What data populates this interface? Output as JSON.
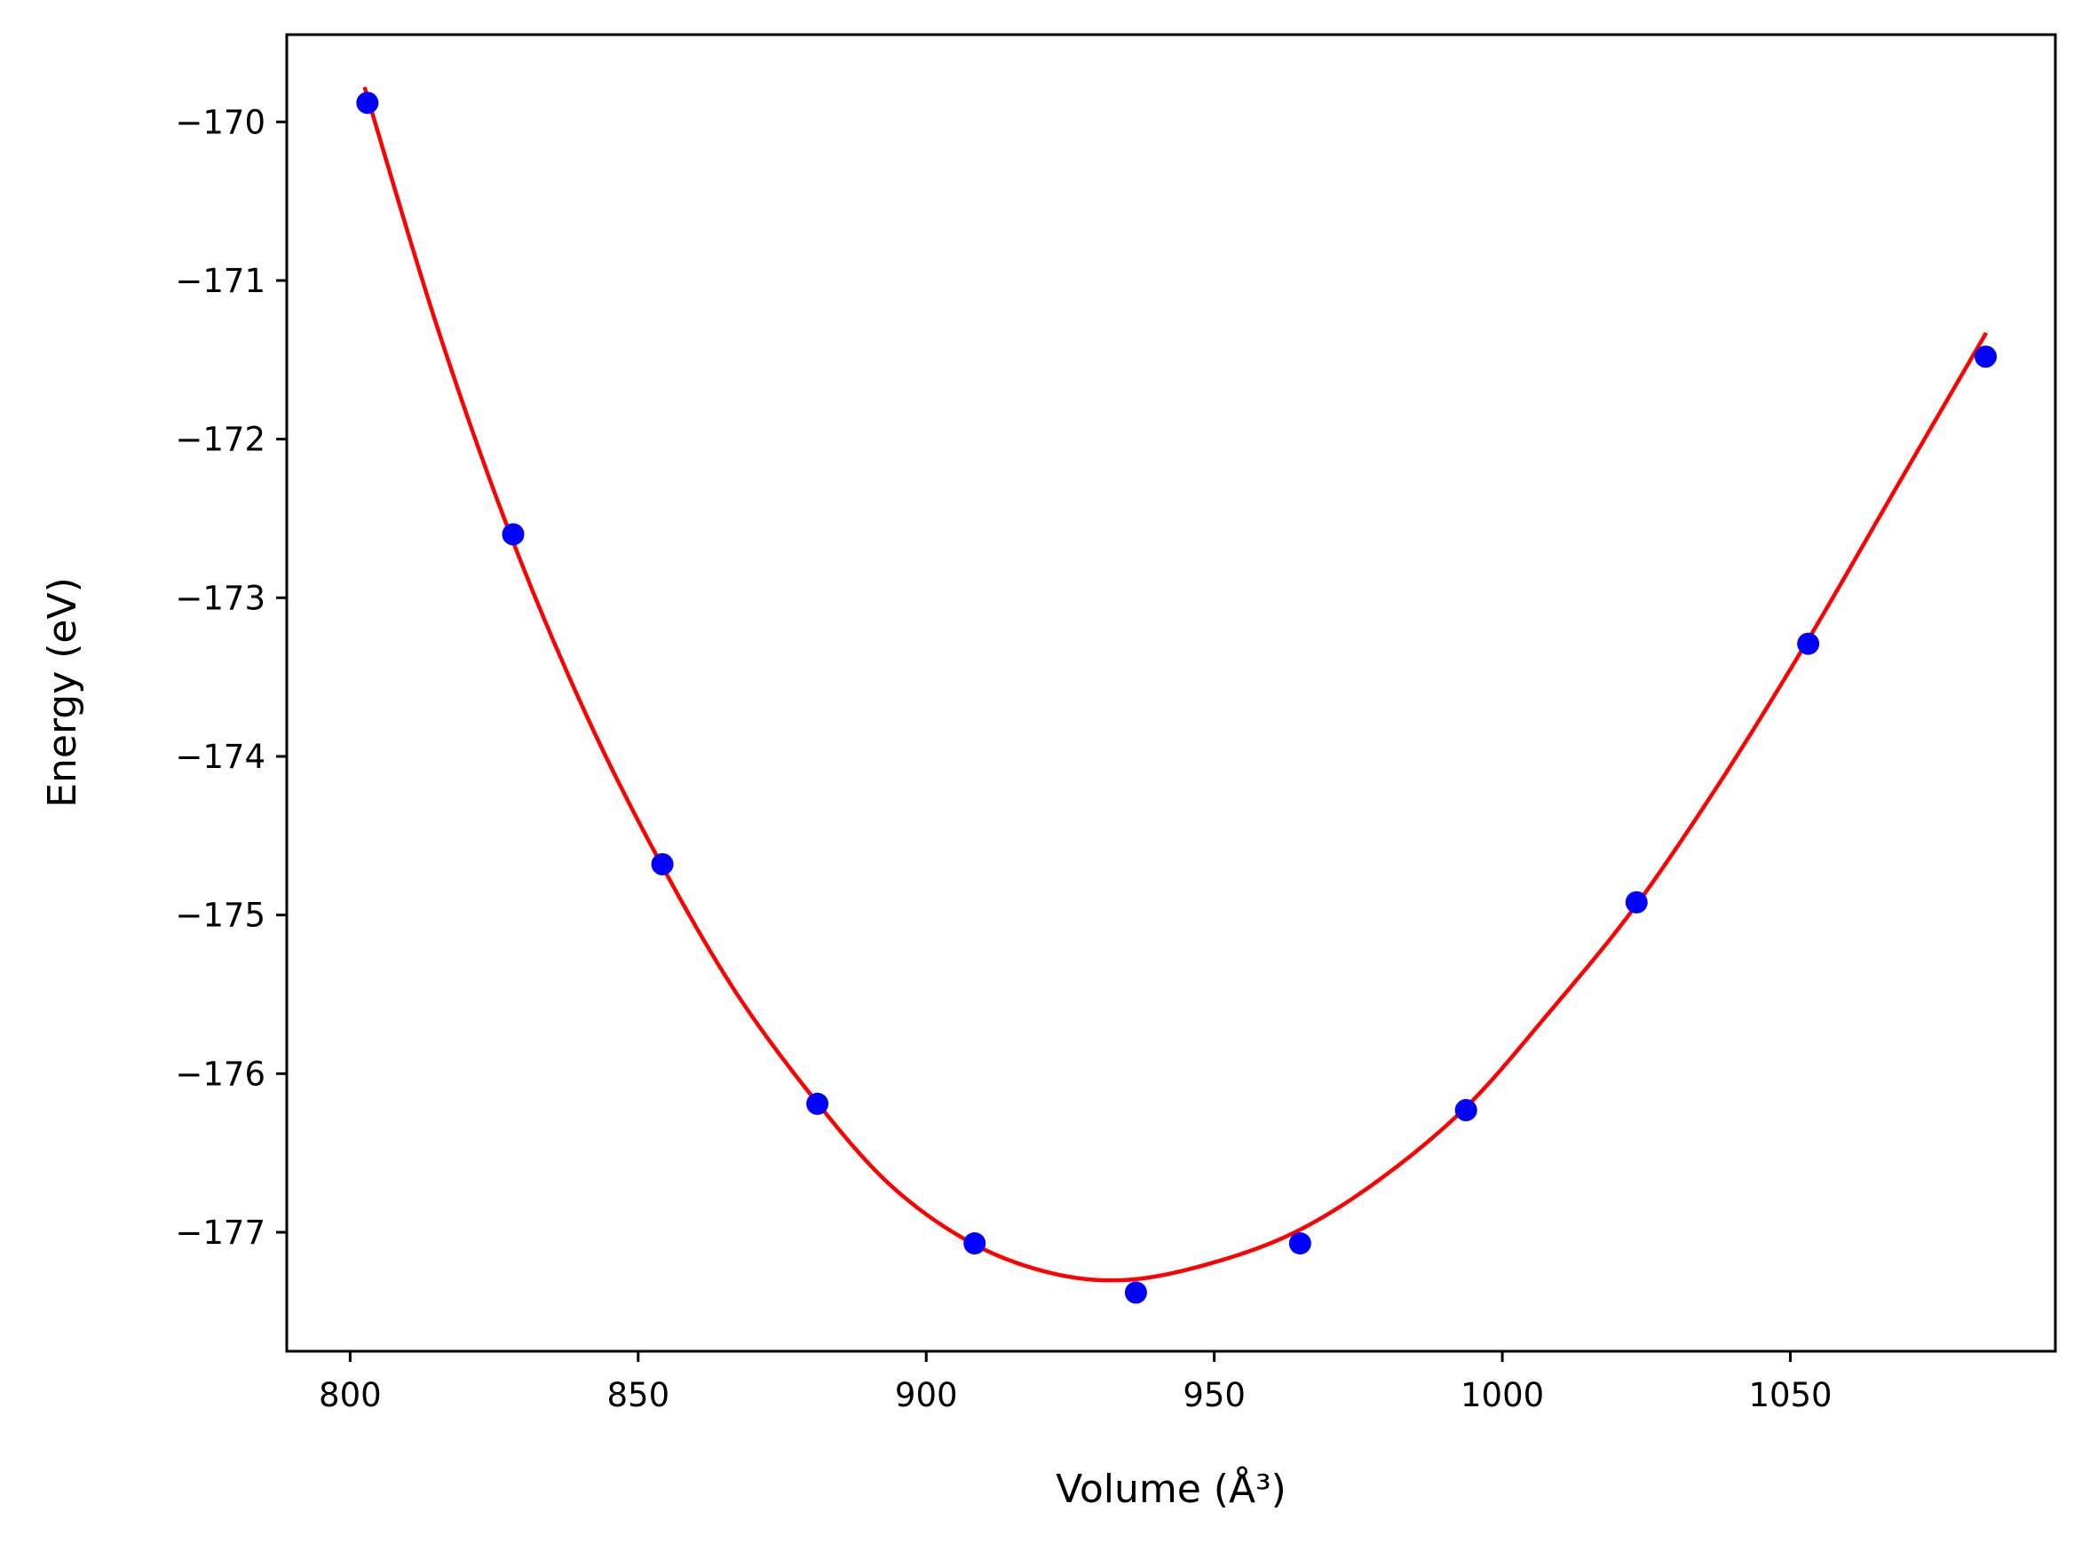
{
  "chart_data": {
    "type": "scatter",
    "xlabel": "Volume (Å³)",
    "ylabel": "Energy (eV)",
    "xlim": [
      789,
      1096
    ],
    "ylim": [
      -177.75,
      -169.45
    ],
    "xticks": [
      800,
      850,
      900,
      950,
      1000,
      1050
    ],
    "yticks": [
      -170,
      -171,
      -172,
      -173,
      -174,
      -175,
      -176,
      -177
    ],
    "xtick_labels": [
      "800",
      "850",
      "900",
      "950",
      "1000",
      "1050"
    ],
    "ytick_labels": [
      "−170",
      "−171",
      "−172",
      "−173",
      "−174",
      "−175",
      "−176",
      "−177"
    ],
    "grid": false,
    "legend": "none",
    "series": [
      {
        "kind": "points",
        "color": "#0000ff",
        "x": [
          803,
          828.3,
          854.2,
          881.1,
          908.4,
          936.4,
          964.9,
          993.7,
          1023.3,
          1053.1,
          1083.9
        ],
        "y": [
          -169.88,
          -172.6,
          -174.68,
          -176.19,
          -177.07,
          -177.38,
          -177.07,
          -176.23,
          -174.92,
          -173.29,
          -171.48
        ]
      },
      {
        "kind": "fit-curve",
        "color": "#ff0000",
        "x": [
          802.5,
          815,
          828,
          841,
          854,
          867,
          881,
          894,
          908,
          922,
          935,
          949,
          964,
          979,
          994,
          1008,
          1023,
          1038,
          1053,
          1068,
          1084
        ],
        "y": [
          -169.78,
          -171.28,
          -172.62,
          -173.74,
          -174.68,
          -175.49,
          -176.18,
          -176.71,
          -177.07,
          -177.26,
          -177.3,
          -177.2,
          -177.0,
          -176.66,
          -176.2,
          -175.62,
          -174.95,
          -174.15,
          -173.27,
          -172.33,
          -171.33
        ]
      }
    ],
    "colors": {
      "frame": "#000000",
      "background": "#ffffff"
    }
  }
}
